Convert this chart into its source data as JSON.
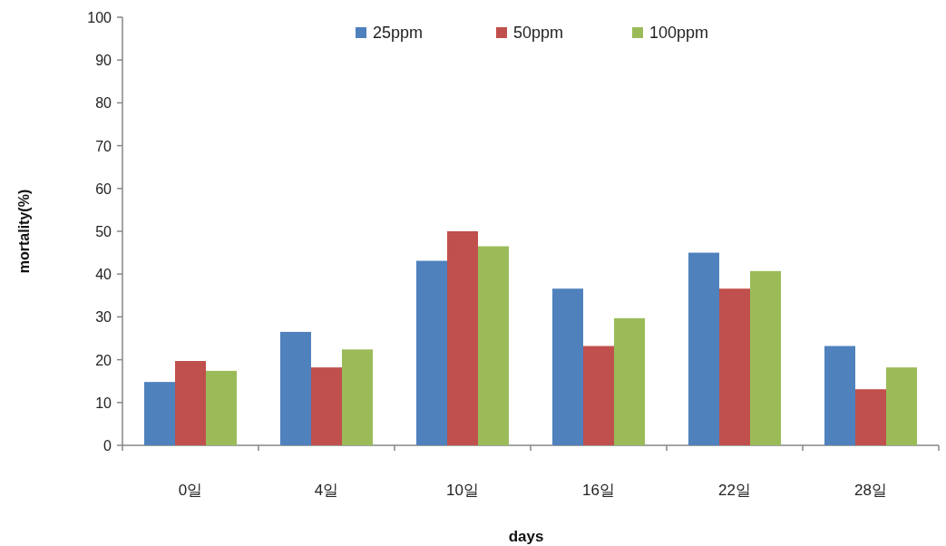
{
  "chart_data": {
    "type": "bar",
    "xlabel": "days",
    "ylabel": "mortality(%)",
    "categories": [
      "0일",
      "4일",
      "10일",
      "16일",
      "22일",
      "28일"
    ],
    "series": [
      {
        "name": "25ppm",
        "color": "#4f81bd",
        "values": [
          14.8,
          26.5,
          43.1,
          36.6,
          45,
          23.2
        ]
      },
      {
        "name": "50ppm",
        "color": "#c0504d",
        "values": [
          19.7,
          18.2,
          50,
          23.2,
          36.6,
          13.1
        ]
      },
      {
        "name": "100ppm",
        "color": "#9bbb59",
        "values": [
          17.4,
          22.4,
          46.5,
          29.7,
          40.7,
          18.2
        ]
      }
    ],
    "ylim": [
      0,
      100
    ],
    "yticks": [
      0,
      10,
      20,
      30,
      40,
      50,
      60,
      70,
      80,
      90,
      100
    ],
    "grid": false,
    "legend": "top"
  }
}
